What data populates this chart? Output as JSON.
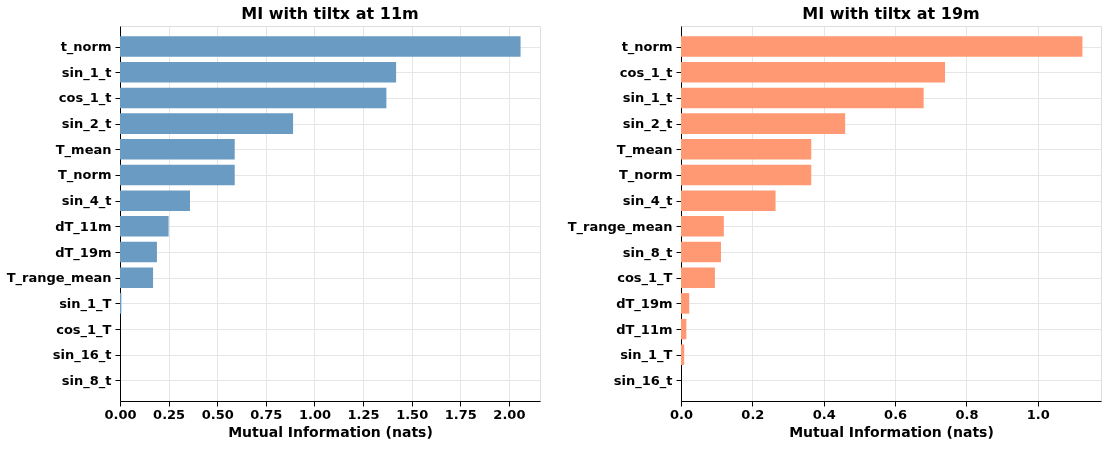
{
  "chart_data": [
    {
      "type": "bar",
      "orientation": "horizontal",
      "title": "MI with tiltx at 11m",
      "xlabel": "Mutual Information (nats)",
      "categories": [
        "t_norm",
        "sin_1_t",
        "cos_1_t",
        "sin_2_t",
        "T_mean",
        "T_norm",
        "sin_4_t",
        "dT_11m",
        "dT_19m",
        "T_range_mean",
        "sin_1_T",
        "cos_1_T",
        "sin_16_t",
        "sin_8_t"
      ],
      "values": [
        2.06,
        1.42,
        1.37,
        0.89,
        0.59,
        0.59,
        0.36,
        0.25,
        0.19,
        0.17,
        0.007,
        0,
        0,
        0
      ],
      "color": "#6a9bc3",
      "xlim": [
        0,
        2.16
      ],
      "xticks": [
        {
          "value": 0,
          "label": "0.00"
        },
        0.25,
        {
          "value": 0.5,
          "label": "0.50"
        },
        0.75,
        {
          "value": 1,
          "label": "1.00"
        },
        1.25,
        {
          "value": 1.5,
          "label": "1.50"
        },
        1.75,
        {
          "value": 2,
          "label": "2.00"
        }
      ],
      "grid": true
    },
    {
      "type": "bar",
      "orientation": "horizontal",
      "title": "MI with tiltx at 19m",
      "xlabel": "Mutual Information (nats)",
      "categories": [
        "t_norm",
        "cos_1_t",
        "sin_1_t",
        "sin_2_t",
        "T_mean",
        "T_norm",
        "sin_4_t",
        "T_range_mean",
        "sin_8_t",
        "cos_1_T",
        "dT_19m",
        "dT_11m",
        "sin_1_T",
        "sin_16_t"
      ],
      "values": [
        1.125,
        0.74,
        0.68,
        0.46,
        0.365,
        0.365,
        0.265,
        0.12,
        0.112,
        0.095,
        0.023,
        0.015,
        0.009,
        0
      ],
      "color": "#ff9973",
      "xlim": [
        0,
        1.177
      ],
      "xticks": [
        {
          "value": 0,
          "label": "0.0"
        },
        0.2,
        0.4,
        0.6,
        0.8,
        {
          "value": 1,
          "label": "1.0"
        }
      ],
      "grid": true
    }
  ]
}
